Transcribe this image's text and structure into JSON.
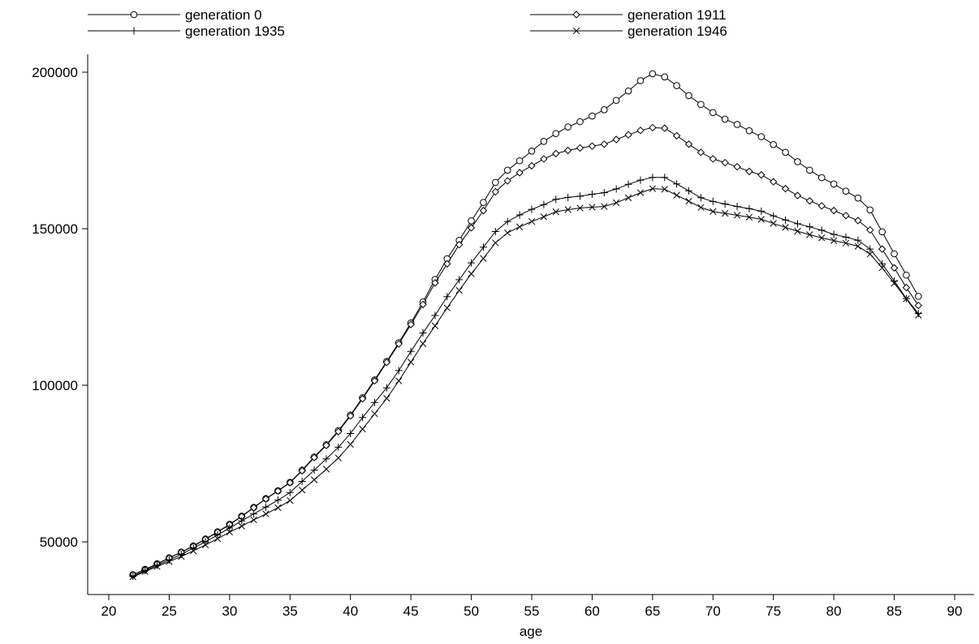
{
  "chart_data": {
    "type": "line",
    "title": "",
    "xlabel": "age",
    "ylabel": "",
    "xlim": [
      17.5,
      92
    ],
    "ylim": [
      35000,
      208000
    ],
    "xticks": [
      20,
      25,
      30,
      35,
      40,
      45,
      50,
      55,
      60,
      65,
      70,
      75,
      80,
      85,
      90
    ],
    "yticks": [
      50000,
      100000,
      150000,
      200000
    ],
    "grid": false,
    "legend_position": "top",
    "x": [
      22,
      23,
      24,
      25,
      26,
      27,
      28,
      29,
      30,
      31,
      32,
      33,
      34,
      35,
      36,
      37,
      38,
      39,
      40,
      41,
      42,
      43,
      44,
      45,
      46,
      47,
      48,
      49,
      50,
      51,
      52,
      53,
      54,
      55,
      56,
      57,
      58,
      59,
      60,
      61,
      62,
      63,
      64,
      65,
      66,
      67,
      68,
      69,
      70,
      71,
      72,
      73,
      74,
      75,
      76,
      77,
      78,
      79,
      80,
      81,
      82,
      83,
      84,
      85,
      86,
      87
    ],
    "series": [
      {
        "name": "generation 0",
        "marker": "circle",
        "values": [
          39500,
          41200,
          43000,
          44900,
          46700,
          48700,
          50900,
          53200,
          55600,
          58200,
          61000,
          63800,
          66300,
          69000,
          72900,
          77100,
          81000,
          85500,
          90500,
          96000,
          101700,
          107600,
          113600,
          119900,
          126600,
          133800,
          140400,
          146300,
          152500,
          158400,
          164800,
          168700,
          171700,
          174800,
          177900,
          180400,
          182500,
          184200,
          186000,
          188000,
          191000,
          194000,
          197300,
          199500,
          198500,
          195700,
          192500,
          189700,
          187100,
          185000,
          183300,
          181300,
          179400,
          176900,
          174400,
          171400,
          168700,
          166300,
          164300,
          162000,
          159800,
          156000,
          149000,
          142000,
          135200,
          128400
        ]
      },
      {
        "name": "generation 1911",
        "marker": "diamond",
        "values": [
          39500,
          41100,
          42900,
          44800,
          46700,
          48600,
          50800,
          53100,
          55500,
          58100,
          60900,
          63700,
          66200,
          68900,
          72700,
          76900,
          80800,
          85200,
          90200,
          95700,
          101400,
          107300,
          113200,
          119400,
          125800,
          132700,
          138800,
          144900,
          150300,
          155800,
          161800,
          165300,
          167900,
          170100,
          172300,
          174000,
          175000,
          175800,
          176400,
          177000,
          178500,
          180000,
          181400,
          182300,
          182100,
          179700,
          177000,
          174400,
          172300,
          171100,
          169800,
          168300,
          167200,
          165000,
          162800,
          160600,
          158900,
          157300,
          155800,
          154200,
          152600,
          149600,
          143500,
          137500,
          131200,
          125500
        ]
      },
      {
        "name": "generation 1935",
        "marker": "plus",
        "values": [
          39000,
          40800,
          42500,
          44200,
          46000,
          48000,
          50000,
          52200,
          54400,
          56700,
          58900,
          61100,
          63300,
          65700,
          69300,
          72900,
          76500,
          80200,
          84600,
          89700,
          94500,
          99200,
          104700,
          110800,
          116700,
          122300,
          128300,
          133700,
          139100,
          144100,
          149100,
          152300,
          154400,
          156200,
          157700,
          159400,
          160000,
          160400,
          161000,
          161500,
          162700,
          164200,
          165500,
          166400,
          166400,
          164300,
          162100,
          159900,
          158700,
          157900,
          157100,
          156400,
          155600,
          154100,
          152800,
          151600,
          150600,
          149500,
          148200,
          147300,
          146300,
          143500,
          138800,
          133300,
          127700,
          122900
        ]
      },
      {
        "name": "generation 1946",
        "marker": "cross",
        "values": [
          38800,
          40500,
          42100,
          43700,
          45300,
          47100,
          49000,
          51000,
          53100,
          55000,
          57000,
          58900,
          60900,
          63200,
          66500,
          69800,
          73200,
          76800,
          81100,
          86000,
          90900,
          95800,
          101400,
          107400,
          113300,
          119000,
          124700,
          130300,
          135600,
          140500,
          145500,
          148700,
          150600,
          152300,
          153800,
          155400,
          156100,
          156600,
          156900,
          157100,
          158300,
          159900,
          161500,
          162800,
          162600,
          160700,
          158800,
          156800,
          155500,
          154900,
          154300,
          153700,
          153000,
          151700,
          150400,
          149200,
          148100,
          147100,
          146200,
          145400,
          144400,
          141900,
          137500,
          132600,
          127600,
          122400
        ]
      }
    ]
  }
}
